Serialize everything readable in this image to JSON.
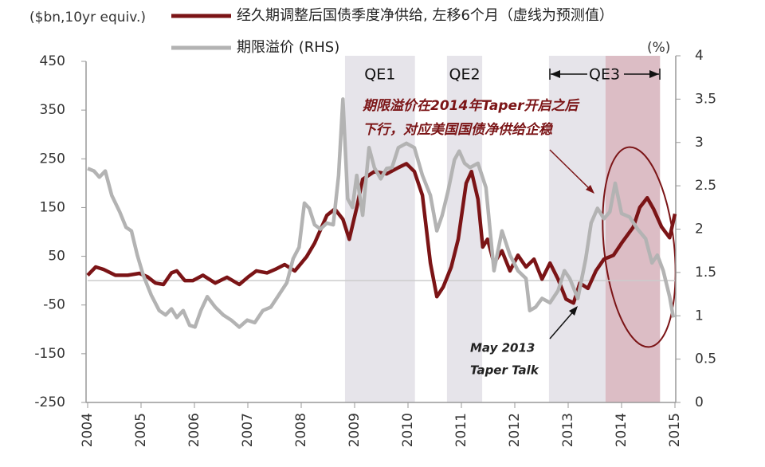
{
  "chart_data": {
    "type": "line",
    "y_label": "($bn,10yr equiv.)",
    "y2_label": "(%)",
    "xlim": [
      2004,
      2015
    ],
    "xticks": [
      2004,
      2005,
      2006,
      2007,
      2008,
      2009,
      2010,
      2011,
      2012,
      2013,
      2014,
      2015
    ],
    "ylim": [
      -250,
      450
    ],
    "yticks": [
      450,
      350,
      250,
      150,
      50,
      -50,
      -150,
      -250
    ],
    "y2lim": [
      0,
      4
    ],
    "y2ticks": [
      4,
      3.5,
      3,
      2.5,
      2,
      1.5,
      1,
      0.5,
      0
    ],
    "zero_line": true,
    "regions": [
      {
        "label": "QE1",
        "start": 2008.82,
        "end": 2010.13,
        "color": "#e6e4ea"
      },
      {
        "label": "QE2",
        "start": 2010.73,
        "end": 2011.39,
        "color": "#e6e4ea"
      },
      {
        "label": "QE3",
        "start": 2012.64,
        "end": 2014.72,
        "color": "#e6e4ea"
      },
      {
        "start": 2013.7,
        "end": 2014.72,
        "color": "#dcbdc5"
      }
    ],
    "annotations": [
      {
        "lines": [
          "期限溢价在2014年Taper开启之后",
          "下行，对应美国国债净供给企稳"
        ]
      },
      {
        "lines": [
          "May 2013",
          "Taper Talk"
        ]
      }
    ],
    "series": [
      {
        "name": "经久期调整后国债季度净供给, 左移6个月（虚线为预测值）",
        "color": "#7b1416",
        "x": [
          2004.0,
          2004.15,
          2004.3,
          2004.52,
          2004.75,
          2004.97,
          2005.12,
          2005.27,
          2005.42,
          2005.57,
          2005.67,
          2005.82,
          2005.97,
          2006.16,
          2006.39,
          2006.61,
          2006.84,
          2007.01,
          2007.16,
          2007.36,
          2007.51,
          2007.69,
          2007.88,
          2008.1,
          2008.25,
          2008.48,
          2008.63,
          2008.78,
          2008.9,
          2009.04,
          2009.15,
          2009.37,
          2009.6,
          2009.82,
          2009.97,
          2010.12,
          2010.27,
          2010.42,
          2010.54,
          2010.66,
          2010.81,
          2010.94,
          2011.09,
          2011.19,
          2011.31,
          2011.4,
          2011.49,
          2011.61,
          2011.76,
          2011.91,
          2012.06,
          2012.21,
          2012.36,
          2012.51,
          2012.66,
          2012.81,
          2012.96,
          2013.1,
          2013.22,
          2013.37,
          2013.52,
          2013.67,
          2013.85,
          2014.0,
          2014.22,
          2014.34,
          2014.48,
          2014.6,
          2014.75,
          2014.9,
          2015.0
        ],
        "values": [
          11,
          28,
          23,
          11,
          11,
          15,
          8,
          -5,
          -8,
          16,
          20,
          0,
          0,
          11,
          -5,
          7,
          -8,
          8,
          20,
          16,
          23,
          33,
          20,
          49,
          77,
          134,
          147,
          126,
          85,
          150,
          208,
          224,
          219,
          232,
          240,
          224,
          175,
          36,
          -33,
          -13,
          28,
          85,
          200,
          224,
          167,
          69,
          85,
          36,
          61,
          20,
          52,
          28,
          44,
          3,
          36,
          3,
          -38,
          -46,
          -5,
          -16,
          20,
          44,
          52,
          77,
          110,
          150,
          170,
          147,
          110,
          88,
          137
        ]
      },
      {
        "name": "期限溢价 (RHS)",
        "color": "#b3b3b3",
        "axis": "y2",
        "x": [
          2004.0,
          2004.12,
          2004.22,
          2004.33,
          2004.45,
          2004.6,
          2004.72,
          2004.82,
          2004.93,
          2005.04,
          2005.19,
          2005.34,
          2005.46,
          2005.57,
          2005.67,
          2005.79,
          2005.91,
          2006.01,
          2006.12,
          2006.24,
          2006.39,
          2006.54,
          2006.69,
          2006.84,
          2006.99,
          2007.13,
          2007.28,
          2007.43,
          2007.58,
          2007.73,
          2007.85,
          2007.96,
          2008.06,
          2008.15,
          2008.25,
          2008.36,
          2008.48,
          2008.6,
          2008.7,
          2008.78,
          2008.87,
          2008.96,
          2009.04,
          2009.15,
          2009.27,
          2009.37,
          2009.49,
          2009.6,
          2009.7,
          2009.82,
          2009.97,
          2010.12,
          2010.27,
          2010.42,
          2010.54,
          2010.64,
          2010.75,
          2010.87,
          2010.96,
          2011.06,
          2011.16,
          2011.31,
          2011.46,
          2011.61,
          2011.76,
          2011.91,
          2012.06,
          2012.21,
          2012.28,
          2012.39,
          2012.51,
          2012.66,
          2012.81,
          2012.93,
          2013.03,
          2013.18,
          2013.33,
          2013.43,
          2013.55,
          2013.67,
          2013.78,
          2013.88,
          2014.0,
          2014.15,
          2014.3,
          2014.45,
          2014.57,
          2014.67,
          2014.78,
          2014.9,
          2014.97
        ],
        "values": [
          2.7,
          2.67,
          2.6,
          2.67,
          2.39,
          2.2,
          2.02,
          1.98,
          1.7,
          1.47,
          1.24,
          1.06,
          1.01,
          1.08,
          0.98,
          1.06,
          0.89,
          0.87,
          1.06,
          1.22,
          1.1,
          1.01,
          0.95,
          0.87,
          0.95,
          0.92,
          1.06,
          1.1,
          1.24,
          1.38,
          1.66,
          1.79,
          2.3,
          2.24,
          2.05,
          2.0,
          2.07,
          2.05,
          2.62,
          3.5,
          2.35,
          2.25,
          2.62,
          2.16,
          2.94,
          2.71,
          2.58,
          2.7,
          2.71,
          2.94,
          2.99,
          2.94,
          2.62,
          2.39,
          1.98,
          2.16,
          2.44,
          2.8,
          2.9,
          2.76,
          2.71,
          2.76,
          2.48,
          1.52,
          1.98,
          1.7,
          1.52,
          1.43,
          1.06,
          1.1,
          1.2,
          1.15,
          1.29,
          1.52,
          1.43,
          1.2,
          1.66,
          2.07,
          2.24,
          2.12,
          2.2,
          2.53,
          2.18,
          2.14,
          2.0,
          1.89,
          1.61,
          1.7,
          1.52,
          1.22,
          0.98
        ]
      }
    ]
  }
}
